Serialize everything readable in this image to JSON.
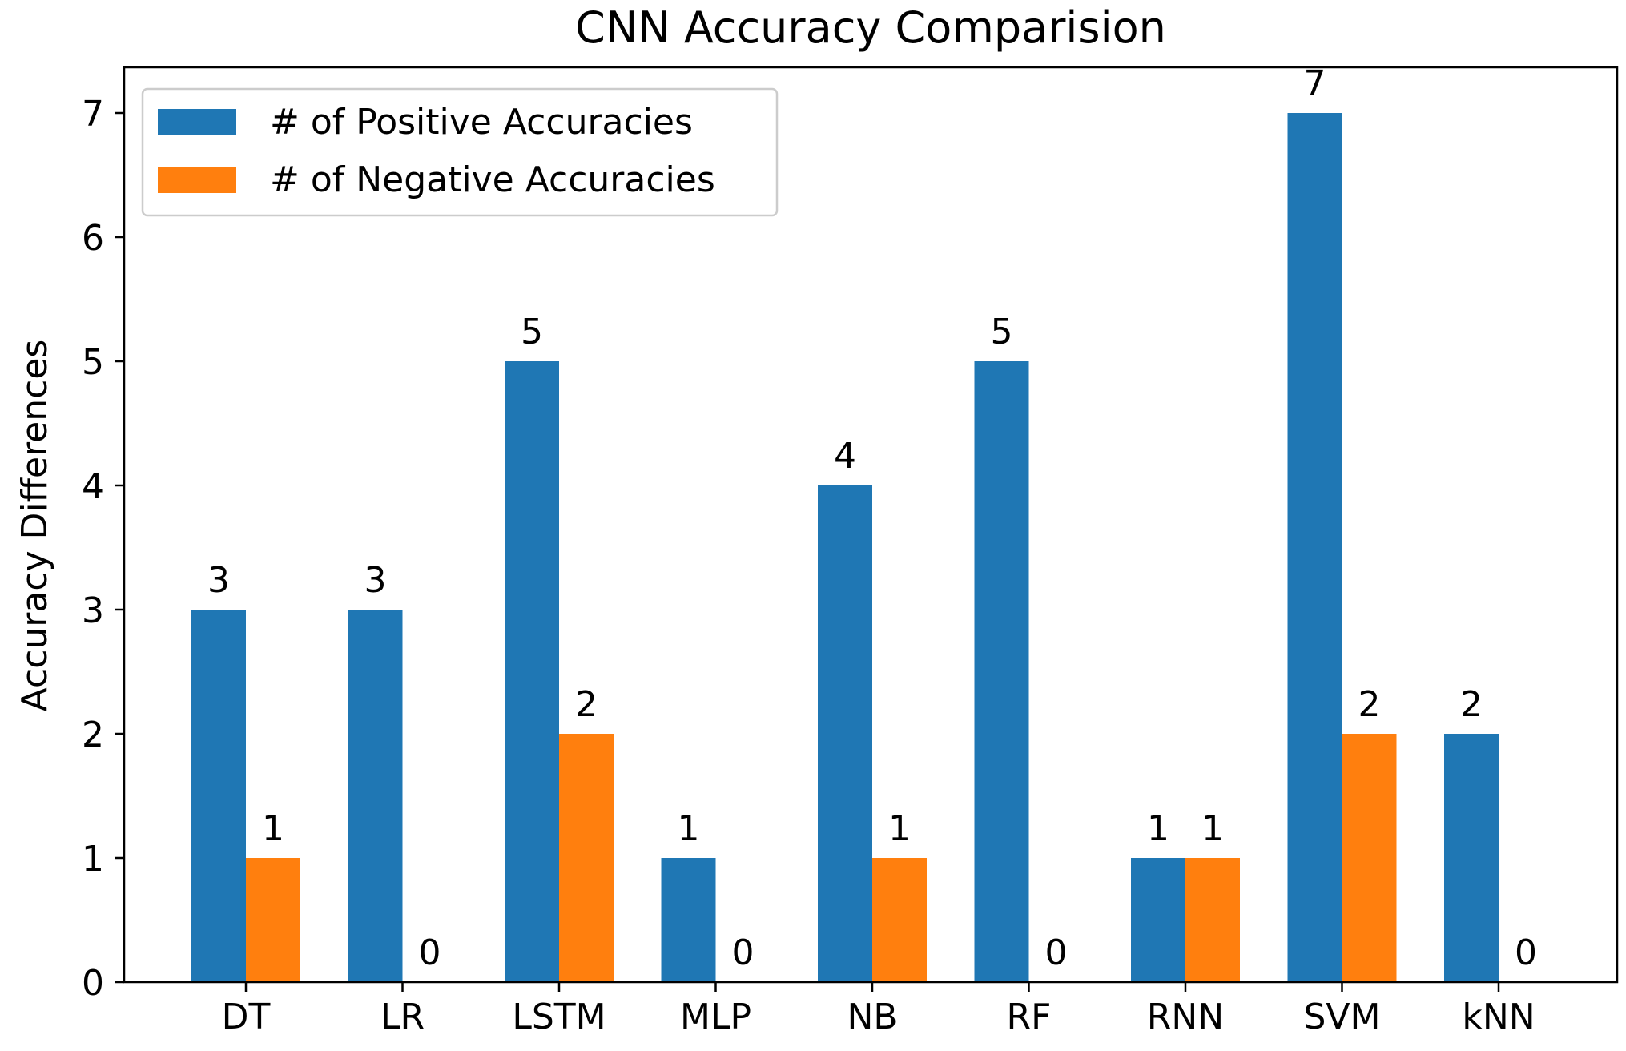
{
  "chart_data": {
    "type": "bar",
    "title": "CNN Accuracy Comparision",
    "xlabel": "",
    "ylabel": "Accuracy Differences",
    "categories": [
      "DT",
      "LR",
      "LSTM",
      "MLP",
      "NB",
      "RF",
      "RNN",
      "SVM",
      "kNN"
    ],
    "series": [
      {
        "name": "# of Positive Accuracies",
        "color": "#1f77b4",
        "values": [
          3,
          3,
          5,
          1,
          4,
          5,
          1,
          7,
          2
        ]
      },
      {
        "name": "# of Negative Accuracies",
        "color": "#ff7f0e",
        "values": [
          1,
          0,
          2,
          0,
          1,
          0,
          1,
          2,
          0
        ]
      }
    ],
    "ylim": [
      0,
      7.35
    ],
    "yticks": [
      0,
      1,
      2,
      3,
      4,
      5,
      6,
      7
    ],
    "grid": false,
    "legend_position": "top-left",
    "data_labels": true
  }
}
